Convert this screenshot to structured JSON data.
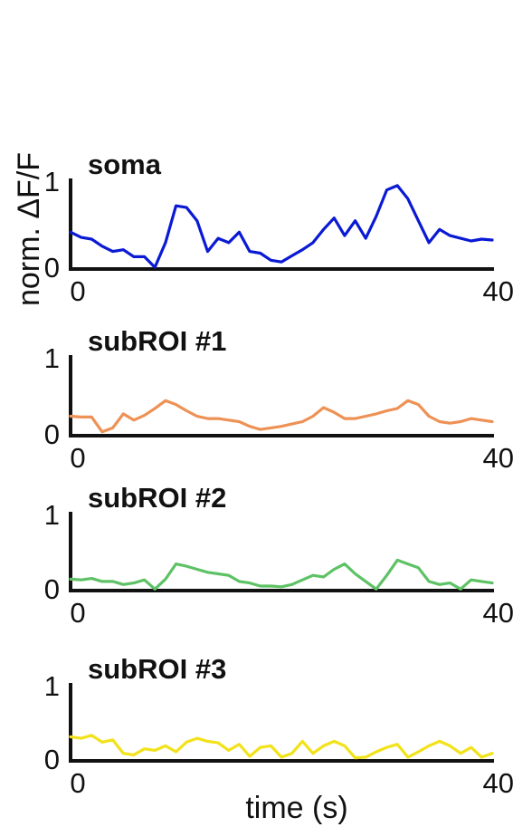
{
  "ylabel": "norm. ΔF/F",
  "xlabel": "time (s)",
  "panel_letter": "",
  "chart_data": [
    {
      "type": "line",
      "title": "soma",
      "color": "#0a1ad4",
      "xlim": [
        0,
        40
      ],
      "ylim": [
        0,
        1
      ],
      "xticks": [
        "0",
        "40"
      ],
      "yticks": [
        "0",
        "1"
      ],
      "x": [
        0,
        1,
        2,
        3,
        4,
        5,
        6,
        7,
        8,
        9,
        10,
        11,
        12,
        13,
        14,
        15,
        16,
        17,
        18,
        19,
        20,
        21,
        22,
        23,
        24,
        25,
        26,
        27,
        28,
        29,
        30,
        31,
        32,
        33,
        34,
        35,
        36,
        37,
        38,
        39,
        40
      ],
      "series": [
        {
          "values": [
            0.42,
            0.36,
            0.34,
            0.26,
            0.2,
            0.22,
            0.14,
            0.14,
            0.02,
            0.3,
            0.72,
            0.7,
            0.55,
            0.2,
            0.35,
            0.3,
            0.42,
            0.2,
            0.18,
            0.1,
            0.08,
            0.15,
            0.22,
            0.3,
            0.45,
            0.58,
            0.38,
            0.55,
            0.35,
            0.6,
            0.9,
            0.95,
            0.8,
            0.55,
            0.3,
            0.45,
            0.38,
            0.35,
            0.32,
            0.34,
            0.33
          ]
        }
      ]
    },
    {
      "type": "line",
      "title": "subROI #1",
      "color": "#ee9155",
      "xlim": [
        0,
        40
      ],
      "ylim": [
        0,
        1
      ],
      "xticks": [
        "0",
        "40"
      ],
      "yticks": [
        "0",
        "1"
      ],
      "x": [
        0,
        1,
        2,
        3,
        4,
        5,
        6,
        7,
        8,
        9,
        10,
        11,
        12,
        13,
        14,
        15,
        16,
        17,
        18,
        19,
        20,
        21,
        22,
        23,
        24,
        25,
        26,
        27,
        28,
        29,
        30,
        31,
        32,
        33,
        34,
        35,
        36,
        37,
        38,
        39,
        40
      ],
      "series": [
        {
          "values": [
            0.25,
            0.24,
            0.24,
            0.05,
            0.1,
            0.28,
            0.2,
            0.26,
            0.35,
            0.45,
            0.4,
            0.32,
            0.25,
            0.22,
            0.22,
            0.2,
            0.18,
            0.12,
            0.08,
            0.1,
            0.12,
            0.15,
            0.18,
            0.25,
            0.36,
            0.3,
            0.22,
            0.22,
            0.25,
            0.28,
            0.32,
            0.35,
            0.45,
            0.4,
            0.25,
            0.18,
            0.16,
            0.18,
            0.22,
            0.2,
            0.18
          ]
        }
      ]
    },
    {
      "type": "line",
      "title": "subROI #2",
      "color": "#5ec265",
      "xlim": [
        0,
        40
      ],
      "ylim": [
        0,
        1
      ],
      "xticks": [
        "0",
        "40"
      ],
      "yticks": [
        "0",
        "1"
      ],
      "x": [
        0,
        1,
        2,
        3,
        4,
        5,
        6,
        7,
        8,
        9,
        10,
        11,
        12,
        13,
        14,
        15,
        16,
        17,
        18,
        19,
        20,
        21,
        22,
        23,
        24,
        25,
        26,
        27,
        28,
        29,
        30,
        31,
        32,
        33,
        34,
        35,
        36,
        37,
        38,
        39,
        40
      ],
      "series": [
        {
          "values": [
            0.15,
            0.14,
            0.16,
            0.12,
            0.12,
            0.08,
            0.1,
            0.14,
            0.02,
            0.15,
            0.35,
            0.32,
            0.28,
            0.24,
            0.22,
            0.2,
            0.12,
            0.1,
            0.06,
            0.06,
            0.05,
            0.08,
            0.14,
            0.2,
            0.18,
            0.28,
            0.35,
            0.22,
            0.12,
            0.02,
            0.2,
            0.4,
            0.35,
            0.3,
            0.12,
            0.08,
            0.1,
            0.02,
            0.14,
            0.12,
            0.1
          ]
        }
      ]
    },
    {
      "type": "line",
      "title": "subROI #3",
      "color": "#f2e21a",
      "xlim": [
        0,
        40
      ],
      "ylim": [
        0,
        1
      ],
      "xticks": [
        "0",
        "40"
      ],
      "yticks": [
        "0",
        "1"
      ],
      "x": [
        0,
        1,
        2,
        3,
        4,
        5,
        6,
        7,
        8,
        9,
        10,
        11,
        12,
        13,
        14,
        15,
        16,
        17,
        18,
        19,
        20,
        21,
        22,
        23,
        24,
        25,
        26,
        27,
        28,
        29,
        30,
        31,
        32,
        33,
        34,
        35,
        36,
        37,
        38,
        39,
        40
      ],
      "series": [
        {
          "values": [
            0.32,
            0.3,
            0.34,
            0.25,
            0.28,
            0.1,
            0.08,
            0.16,
            0.14,
            0.2,
            0.12,
            0.25,
            0.3,
            0.26,
            0.24,
            0.14,
            0.22,
            0.06,
            0.18,
            0.2,
            0.05,
            0.1,
            0.26,
            0.1,
            0.2,
            0.26,
            0.2,
            0.04,
            0.05,
            0.12,
            0.18,
            0.22,
            0.05,
            0.12,
            0.2,
            0.26,
            0.2,
            0.1,
            0.18,
            0.05,
            0.1
          ]
        }
      ]
    }
  ]
}
